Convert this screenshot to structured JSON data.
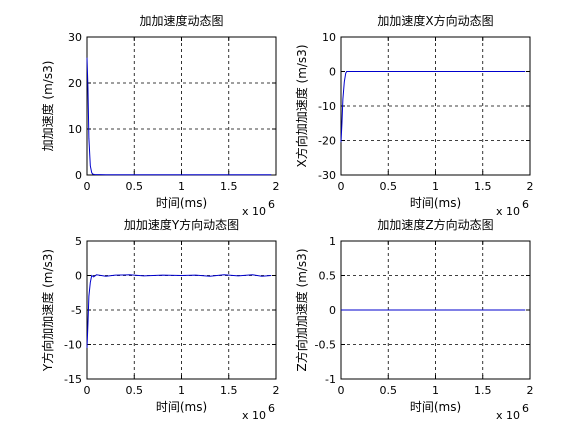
{
  "chart_data": [
    {
      "type": "line",
      "title": "加加速度动态图",
      "xlabel": "时间(ms)",
      "ylabel": "加加速度 (m/s3)",
      "x_exponent_label": "x 10",
      "x_exponent_power": "6",
      "xlim": [
        0,
        2
      ],
      "ylim": [
        0,
        30
      ],
      "xticks": [
        0,
        0.5,
        1,
        1.5,
        2
      ],
      "yticks": [
        0,
        10,
        20,
        30
      ],
      "grid": true,
      "series": [
        {
          "color": "#0000cc",
          "x": [
            0,
            0.01,
            0.02,
            0.035,
            0.05,
            0.06,
            0.08,
            0.2,
            0.6,
            1.0,
            1.4,
            1.8,
            1.95
          ],
          "y": [
            25.5,
            19,
            8,
            2,
            0.5,
            0.2,
            0.1,
            0.05,
            0.05,
            0.05,
            0.05,
            0.05,
            0.05
          ]
        }
      ]
    },
    {
      "type": "line",
      "title": "加加速度X方向动态图",
      "xlabel": "时间(ms)",
      "ylabel": "X方向加加速度 (m/s3)",
      "x_exponent_label": "x 10",
      "x_exponent_power": "6",
      "xlim": [
        0,
        2
      ],
      "ylim": [
        -30,
        10
      ],
      "xticks": [
        0,
        0.5,
        1,
        1.5,
        2
      ],
      "yticks": [
        -30,
        -20,
        -10,
        0,
        10
      ],
      "grid": true,
      "series": [
        {
          "color": "#0000cc",
          "x": [
            0,
            0.01,
            0.02,
            0.035,
            0.05,
            0.06,
            0.1,
            0.5,
            1.0,
            1.5,
            1.95
          ],
          "y": [
            -20.5,
            -15,
            -8,
            -3,
            -0.5,
            0,
            0,
            0,
            0,
            0,
            0
          ]
        }
      ]
    },
    {
      "type": "line",
      "title": "加加速度Y方向动态图",
      "xlabel": "时间(ms)",
      "ylabel": "Y方向加加速度 (m/s3)",
      "x_exponent_label": "x 10",
      "x_exponent_power": "6",
      "xlim": [
        0,
        2
      ],
      "ylim": [
        -15,
        5
      ],
      "xticks": [
        0,
        0.5,
        1,
        1.5,
        2
      ],
      "yticks": [
        -15,
        -10,
        -5,
        0,
        5
      ],
      "grid": true,
      "series": [
        {
          "color": "#0000cc",
          "x": [
            0,
            0.01,
            0.02,
            0.035,
            0.05,
            0.07,
            0.1,
            0.2,
            0.3,
            0.45,
            0.6,
            0.8,
            1.0,
            1.15,
            1.3,
            1.45,
            1.6,
            1.75,
            1.85,
            1.95
          ],
          "y": [
            -10.5,
            -7,
            -3,
            -1,
            0,
            -0.2,
            0.1,
            -0.1,
            0.05,
            0.1,
            -0.05,
            0.05,
            0,
            0.05,
            -0.1,
            0.1,
            -0.05,
            0.1,
            -0.1,
            0
          ]
        }
      ]
    },
    {
      "type": "line",
      "title": "加加速度Z方向动态图",
      "xlabel": "时间(ms)",
      "ylabel": "Z方向加加速度 (m/s3)",
      "x_exponent_label": "x 10",
      "x_exponent_power": "6",
      "xlim": [
        0,
        2
      ],
      "ylim": [
        -1,
        1
      ],
      "xticks": [
        0,
        0.5,
        1,
        1.5,
        2
      ],
      "yticks": [
        -1,
        -0.5,
        0,
        0.5,
        1
      ],
      "grid": true,
      "series": [
        {
          "color": "#0000cc",
          "x": [
            0,
            1.95
          ],
          "y": [
            0,
            0
          ]
        }
      ]
    }
  ]
}
